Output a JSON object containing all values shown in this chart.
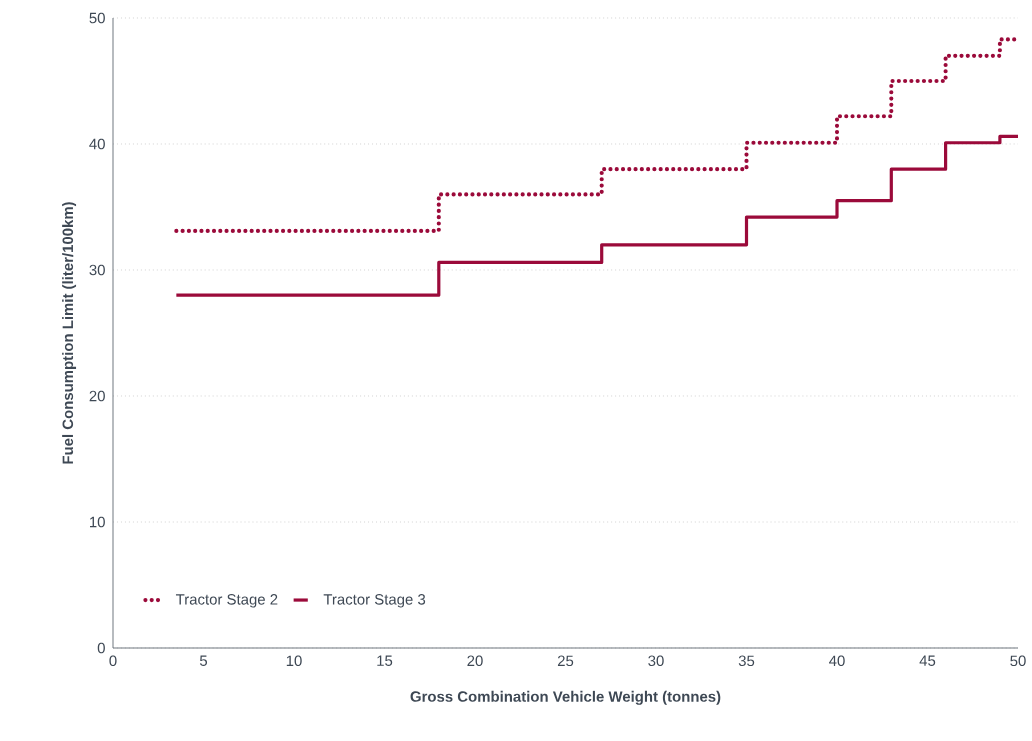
{
  "chart_data": {
    "type": "step",
    "xlabel": "Gross Combination Vehicle Weight (tonnes)",
    "ylabel": "Fuel Consumption Limit (liter/100km)",
    "x": [
      3.5,
      18,
      27,
      35,
      40,
      43,
      46,
      49,
      50
    ],
    "series": [
      {
        "name": "Tractor Stage 2",
        "color": "#9b0a3a",
        "line_style": "dotted",
        "values": [
          33.1,
          36.0,
          38.0,
          40.1,
          42.2,
          45.0,
          47.0,
          48.3,
          48.3
        ]
      },
      {
        "name": "Tractor Stage 3",
        "color": "#9b0a3a",
        "line_style": "solid",
        "values": [
          28.0,
          30.6,
          32.0,
          34.2,
          35.5,
          38.0,
          40.1,
          40.6,
          40.6
        ]
      }
    ],
    "xlim": [
      0,
      50
    ],
    "ylim": [
      0,
      50
    ],
    "xticks": [
      0,
      5,
      10,
      15,
      20,
      25,
      30,
      35,
      40,
      45,
      50
    ],
    "yticks": [
      0,
      10,
      20,
      30,
      40,
      50
    ],
    "grid": "y",
    "legend": "bottom left"
  }
}
